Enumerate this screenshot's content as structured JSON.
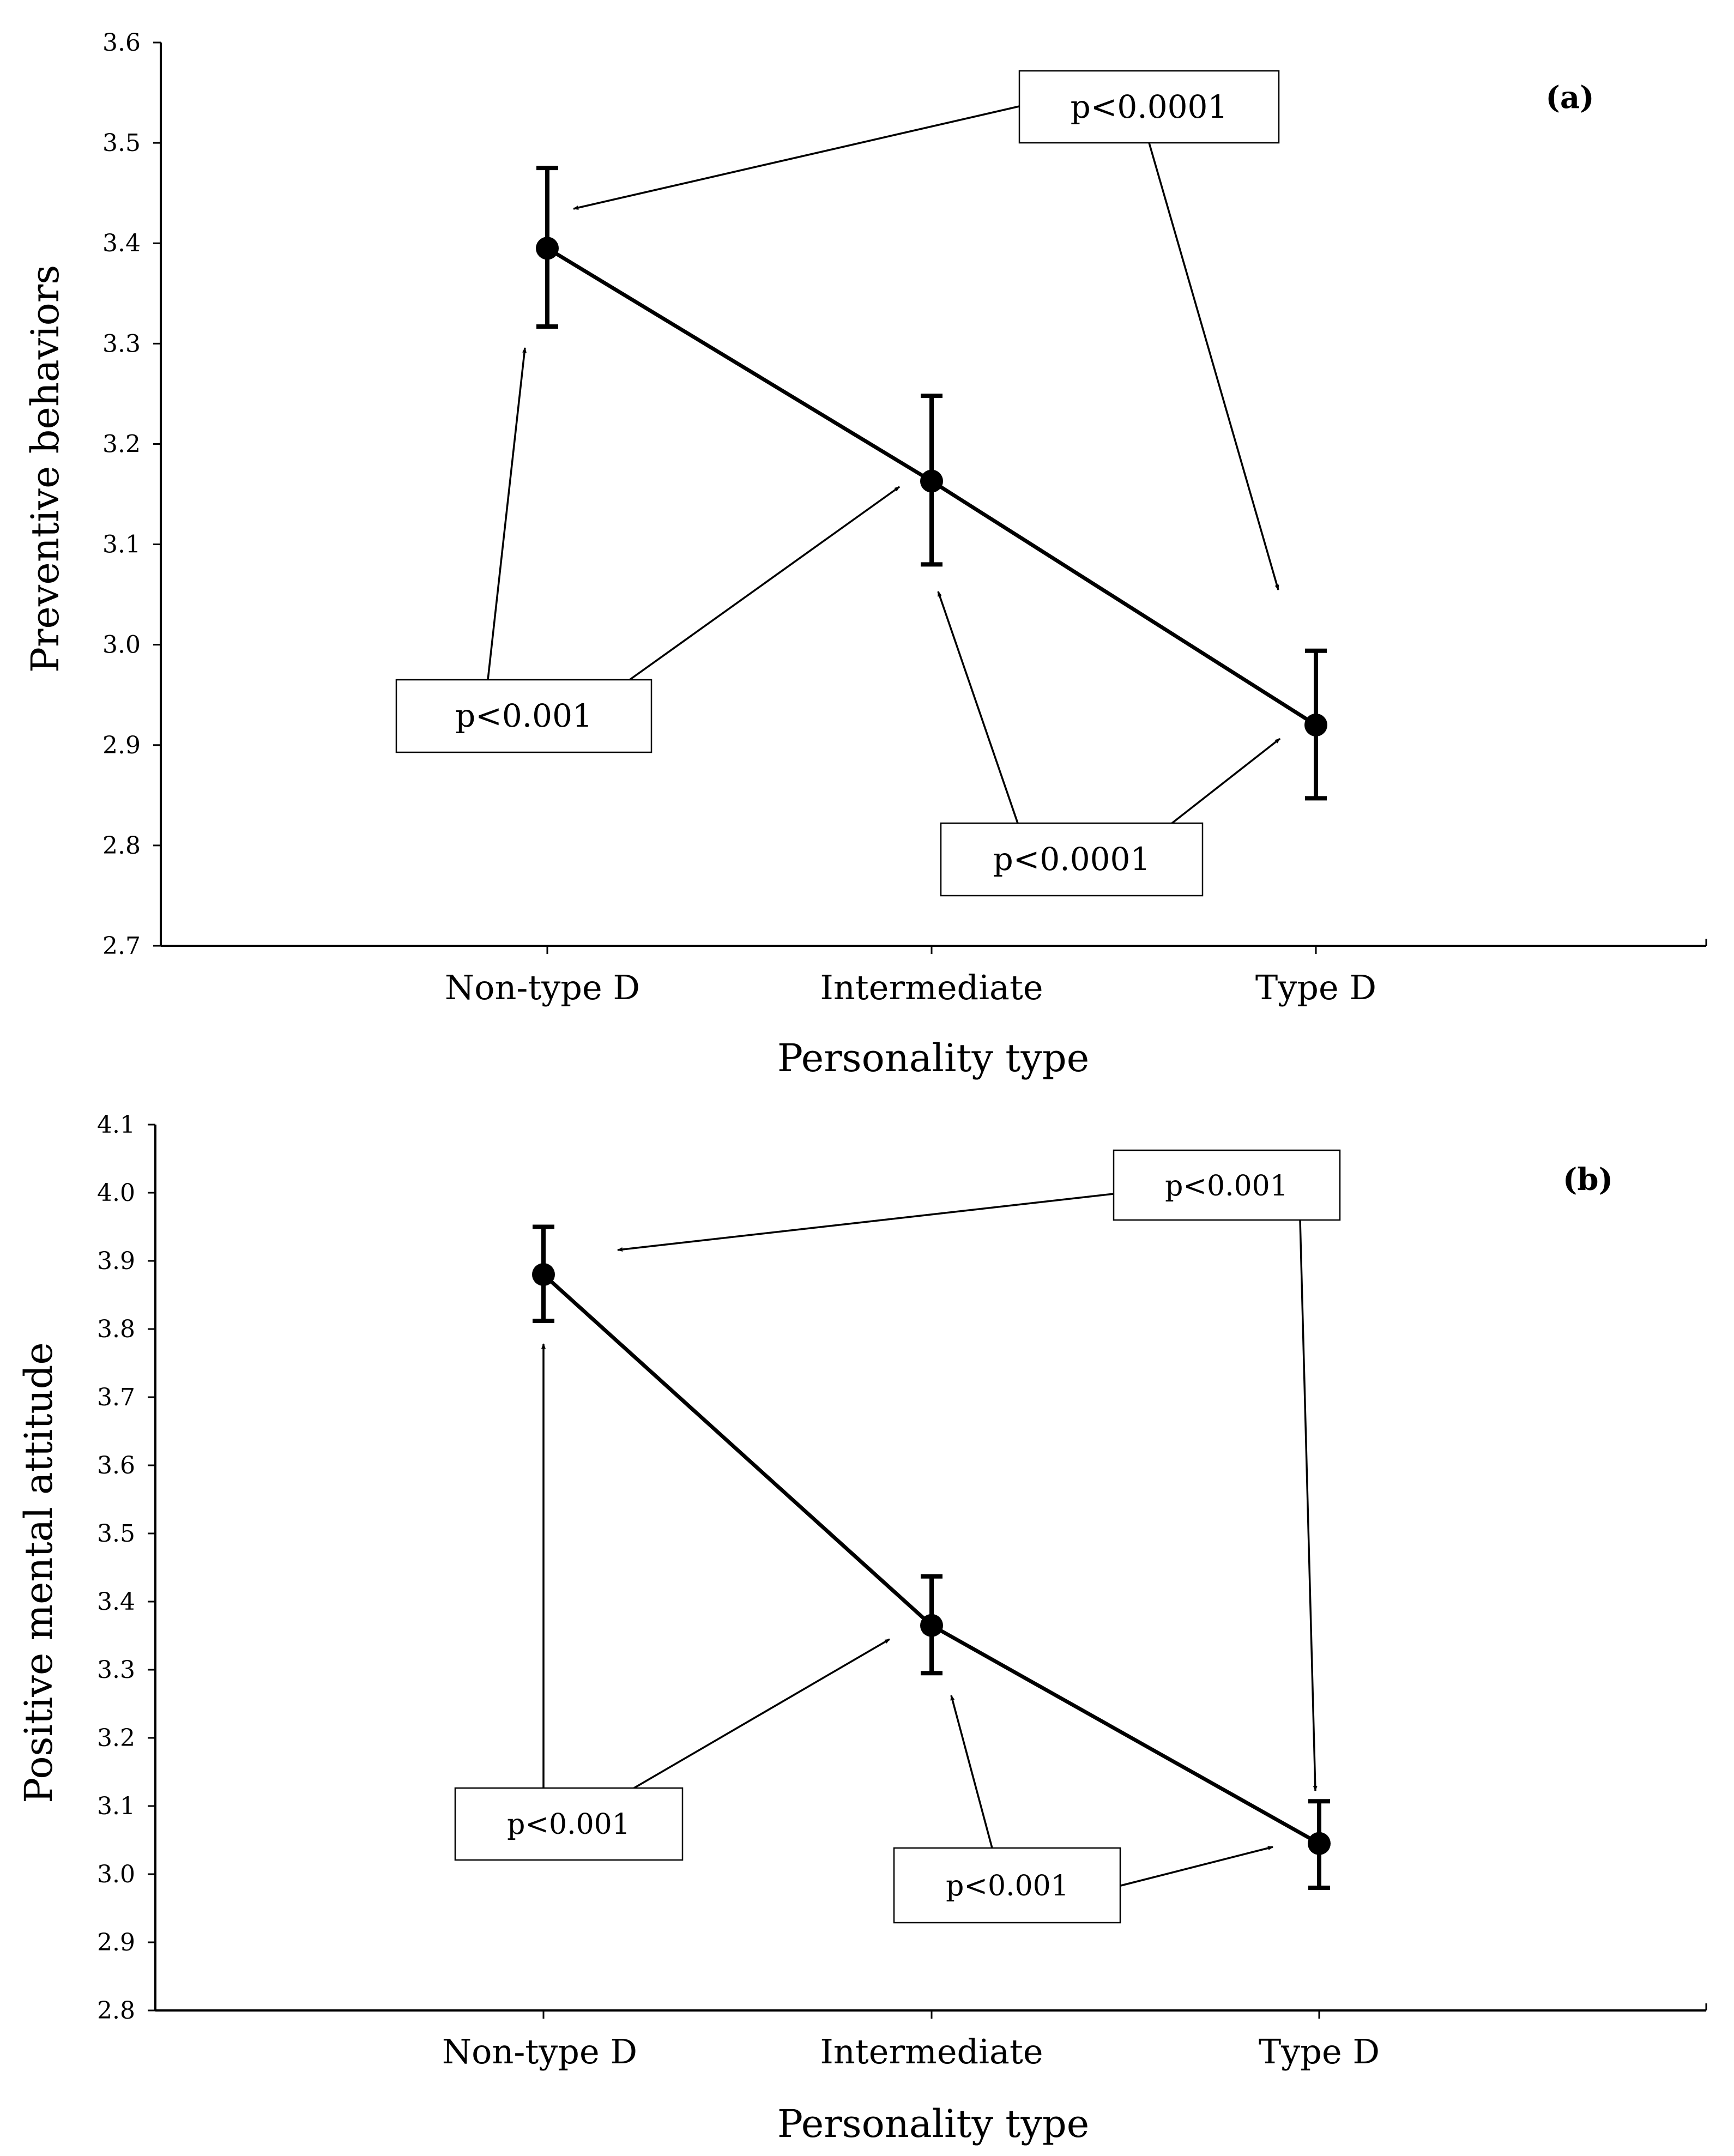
{
  "chart_data": [
    {
      "type": "line",
      "panel_label": "(a)",
      "ylabel": "Preventive behaviors",
      "xlabel": "Personality type",
      "categories": [
        "Non-type D",
        "Intermediate",
        "Type D"
      ],
      "values": [
        3.395,
        3.163,
        2.92
      ],
      "error_low": [
        3.317,
        3.08,
        2.847
      ],
      "error_high": [
        3.475,
        3.248,
        2.994
      ],
      "ylim": [
        2.7,
        3.6
      ],
      "yticks": [
        "2.7",
        "2.8",
        "2.9",
        "3.0",
        "3.1",
        "3.2",
        "3.3",
        "3.4",
        "3.5",
        "3.6"
      ],
      "comparisons": [
        {
          "label": "p<0.0001",
          "between": [
            "Non-type D",
            "Type D"
          ]
        },
        {
          "label": "p<0.001",
          "between": [
            "Non-type D",
            "Intermediate"
          ]
        },
        {
          "label": "p<0.0001",
          "between": [
            "Intermediate",
            "Type D"
          ]
        }
      ]
    },
    {
      "type": "line",
      "panel_label": "(b)",
      "ylabel": "Positive mental attitude",
      "xlabel": "Personality type",
      "categories": [
        "Non-type D",
        "Intermediate",
        "Type D"
      ],
      "values": [
        3.88,
        3.365,
        3.045
      ],
      "error_low": [
        3.812,
        3.295,
        2.98
      ],
      "error_high": [
        3.95,
        3.437,
        3.107
      ],
      "ylim": [
        2.8,
        4.1
      ],
      "yticks": [
        "2.8",
        "2.9",
        "3.0",
        "3.1",
        "3.2",
        "3.3",
        "3.4",
        "3.5",
        "3.6",
        "3.7",
        "3.8",
        "3.9",
        "4.0",
        "4.1"
      ],
      "comparisons": [
        {
          "label": "p<0.001",
          "between": [
            "Non-type D",
            "Type D"
          ]
        },
        {
          "label": "p<0.001",
          "between": [
            "Non-type D",
            "Intermediate"
          ]
        },
        {
          "label": "p<0.001",
          "between": [
            "Intermediate",
            "Type D"
          ]
        }
      ]
    }
  ]
}
